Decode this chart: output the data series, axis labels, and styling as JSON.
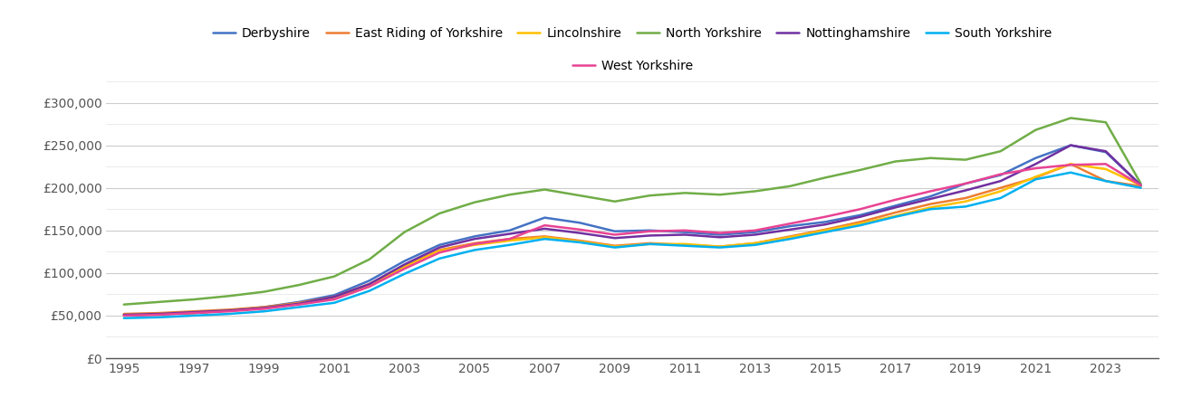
{
  "years": [
    1995,
    1996,
    1997,
    1998,
    1999,
    2000,
    2001,
    2002,
    2003,
    2004,
    2005,
    2006,
    2007,
    2008,
    2009,
    2010,
    2011,
    2012,
    2013,
    2014,
    2015,
    2016,
    2017,
    2018,
    2019,
    2020,
    2021,
    2022,
    2023,
    2024
  ],
  "series": {
    "Derbyshire": [
      50000,
      51500,
      53000,
      56000,
      60000,
      66000,
      74000,
      91000,
      114000,
      133000,
      143000,
      150000,
      165000,
      159000,
      149000,
      150000,
      148000,
      145000,
      148000,
      155000,
      160000,
      168000,
      179000,
      190000,
      205000,
      215000,
      235000,
      250000,
      242000,
      203000
    ],
    "East Riding of Yorkshire": [
      52000,
      53000,
      55000,
      57000,
      60000,
      65000,
      72000,
      87000,
      108000,
      127000,
      135000,
      140000,
      143000,
      138000,
      132000,
      135000,
      133000,
      131000,
      135000,
      143000,
      151000,
      160000,
      171000,
      181000,
      188000,
      200000,
      212000,
      228000,
      208000,
      202000
    ],
    "Lincolnshire": [
      51000,
      52000,
      53000,
      56000,
      59000,
      64000,
      71000,
      86000,
      107000,
      126000,
      133000,
      138000,
      142000,
      137000,
      131000,
      134000,
      134000,
      131000,
      135000,
      142000,
      150000,
      158000,
      167000,
      177000,
      184000,
      196000,
      213000,
      228000,
      222000,
      203000
    ],
    "North Yorkshire": [
      63000,
      66000,
      69000,
      73000,
      78000,
      86000,
      96000,
      116000,
      148000,
      170000,
      183000,
      192000,
      198000,
      191000,
      184000,
      191000,
      194000,
      192000,
      196000,
      202000,
      212000,
      221000,
      231000,
      235000,
      233000,
      243000,
      268000,
      282000,
      277000,
      205000
    ],
    "Nottinghamshire": [
      51000,
      52000,
      54000,
      56000,
      59000,
      64000,
      72000,
      87000,
      110000,
      130000,
      140000,
      146000,
      152000,
      147000,
      141000,
      144000,
      145000,
      142000,
      145000,
      151000,
      157000,
      166000,
      177000,
      187000,
      197000,
      208000,
      228000,
      250000,
      243000,
      203000
    ],
    "South Yorkshire": [
      47000,
      48000,
      50000,
      52000,
      55000,
      60000,
      65000,
      79000,
      99000,
      117000,
      127000,
      133000,
      140000,
      136000,
      130000,
      134000,
      132000,
      130000,
      133000,
      140000,
      148000,
      156000,
      166000,
      175000,
      178000,
      188000,
      210000,
      218000,
      208000,
      200000
    ],
    "West Yorkshire": [
      50000,
      51000,
      53000,
      55000,
      58000,
      63000,
      69000,
      84000,
      105000,
      124000,
      134000,
      140000,
      156000,
      151000,
      145000,
      149000,
      150000,
      147000,
      150000,
      158000,
      166000,
      175000,
      186000,
      196000,
      205000,
      216000,
      223000,
      227000,
      228000,
      203000
    ]
  },
  "colors": {
    "Derbyshire": "#4472c4",
    "East Riding of Yorkshire": "#ed7d31",
    "Lincolnshire": "#ffc000",
    "North Yorkshire": "#70ad47",
    "Nottinghamshire": "#7030a0",
    "South Yorkshire": "#00b0f0",
    "West Yorkshire": "#e84393"
  },
  "ylim": [
    0,
    325000
  ],
  "yticks": [
    0,
    50000,
    100000,
    150000,
    200000,
    250000,
    300000
  ],
  "minor_yticks": [
    25000,
    75000,
    125000,
    175000,
    225000,
    275000,
    325000
  ],
  "ytick_labels": [
    "£0",
    "£50,000",
    "£100,000",
    "£150,000",
    "£200,000",
    "£250,000",
    "£300,000"
  ],
  "xticks": [
    1995,
    1997,
    1999,
    2001,
    2003,
    2005,
    2007,
    2009,
    2011,
    2013,
    2015,
    2017,
    2019,
    2021,
    2023
  ],
  "background_color": "#ffffff",
  "plot_bg_color": "#ffffff",
  "major_grid_color": "#cccccc",
  "minor_grid_color": "#e8e8e8",
  "line_width": 1.8,
  "legend_order": [
    "Derbyshire",
    "East Riding of Yorkshire",
    "Lincolnshire",
    "North Yorkshire",
    "Nottinghamshire",
    "South Yorkshire",
    "West Yorkshire"
  ]
}
